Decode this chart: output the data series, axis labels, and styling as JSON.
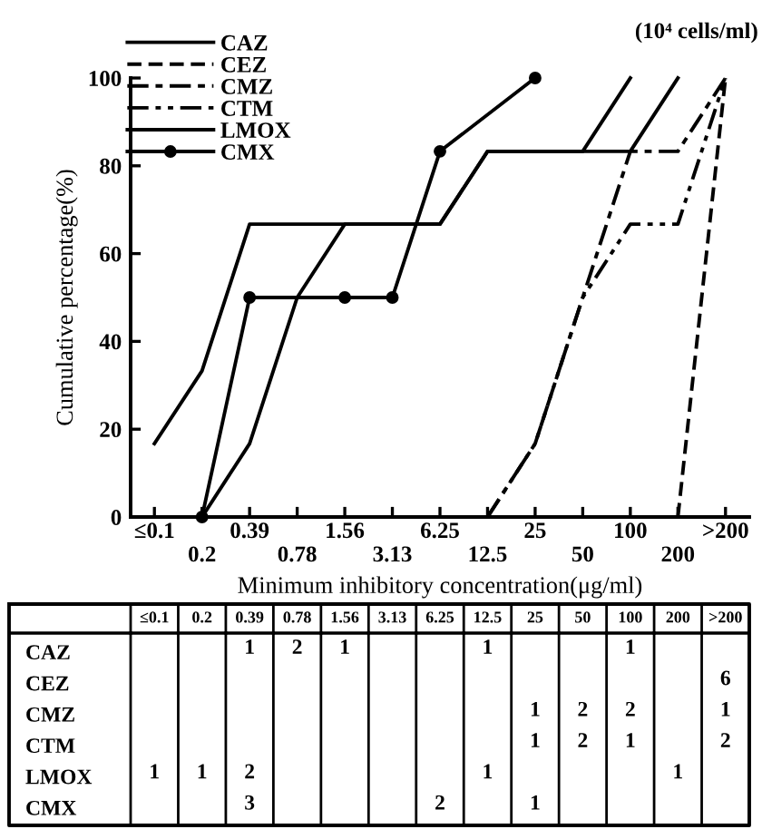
{
  "chart_data": [
    {
      "type": "line",
      "xlabel": "Minimum inhibitory concentration(μg/ml)",
      "ylabel": "Cumulative percentage(%)",
      "categories": [
        "≤0.1",
        "0.2",
        "0.39",
        "0.78",
        "1.56",
        "3.13",
        "6.25",
        "12.5",
        "25",
        "50",
        "100",
        "200",
        ">200"
      ],
      "ylim": [
        0,
        100
      ],
      "yticks": [
        0,
        20,
        40,
        60,
        80,
        100
      ],
      "grid": false,
      "legend": "top left",
      "annotations": [
        "(10⁴ cells/ml)"
      ],
      "series": [
        {
          "name": "CAZ",
          "color": "#000000",
          "line_style": "solid",
          "marker": "none",
          "values": [
            null,
            0,
            16.7,
            50,
            66.7,
            66.7,
            66.7,
            83.3,
            83.3,
            83.3,
            100,
            null,
            null
          ]
        },
        {
          "name": "CEZ",
          "color": "#000000",
          "line_style": "dashed",
          "marker": "none",
          "values": [
            null,
            null,
            null,
            null,
            null,
            null,
            null,
            null,
            null,
            null,
            null,
            0,
            100
          ]
        },
        {
          "name": "CMZ",
          "color": "#000000",
          "line_style": "dashdot",
          "marker": "none",
          "values": [
            null,
            null,
            null,
            null,
            null,
            null,
            null,
            0,
            16.7,
            50,
            83.3,
            83.3,
            100
          ]
        },
        {
          "name": "CTM",
          "color": "#000000",
          "line_style": "dashdotdot",
          "marker": "none",
          "values": [
            null,
            null,
            null,
            null,
            null,
            null,
            null,
            0,
            16.7,
            50,
            66.7,
            66.7,
            100
          ]
        },
        {
          "name": "LMOX",
          "color": "#000000",
          "line_style": "solid",
          "marker": "none",
          "values": [
            16.7,
            33.3,
            66.7,
            66.7,
            66.7,
            66.7,
            66.7,
            83.3,
            83.3,
            83.3,
            83.3,
            100,
            null
          ]
        },
        {
          "name": "CMX",
          "color": "#000000",
          "line_style": "solid",
          "marker": "circle",
          "values": [
            null,
            0,
            50,
            null,
            50,
            50,
            83.3,
            null,
            100,
            null,
            null,
            null,
            null
          ]
        }
      ]
    },
    {
      "type": "heatmap",
      "data_labels": true,
      "categories": [
        "≤0.1",
        "0.2",
        "0.39",
        "0.78",
        "1.56",
        "3.13",
        "6.25",
        "12.5",
        "25",
        "50",
        "100",
        "200",
        ">200"
      ],
      "y_categories": [
        "CAZ",
        "CEZ",
        "CMZ",
        "CTM",
        "LMOX",
        "CMX"
      ],
      "cells": [
        [
          null,
          null,
          1,
          2,
          1,
          null,
          null,
          1,
          null,
          null,
          1,
          null,
          null
        ],
        [
          null,
          null,
          null,
          null,
          null,
          null,
          null,
          null,
          null,
          null,
          null,
          null,
          6
        ],
        [
          null,
          null,
          null,
          null,
          null,
          null,
          null,
          null,
          1,
          2,
          2,
          null,
          1
        ],
        [
          null,
          null,
          null,
          null,
          null,
          null,
          null,
          null,
          1,
          2,
          1,
          null,
          2
        ],
        [
          1,
          1,
          2,
          null,
          null,
          null,
          null,
          1,
          null,
          null,
          null,
          1,
          null
        ],
        [
          null,
          null,
          3,
          null,
          null,
          null,
          2,
          null,
          1,
          null,
          null,
          null,
          null
        ]
      ]
    }
  ]
}
